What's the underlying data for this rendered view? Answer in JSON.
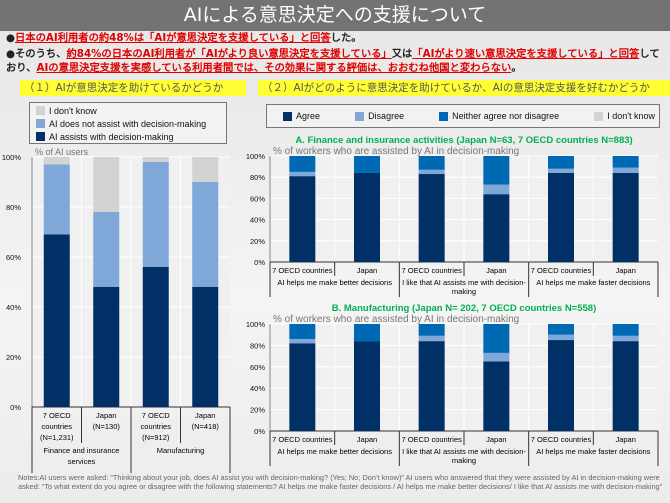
{
  "title": "AIによる意思決定への支援について",
  "bullets": [
    [
      {
        "t": "●",
        "h": false
      },
      {
        "t": "日本のAI利用者の約48%は「AIが意思決定を支援している」と回答",
        "h": true
      },
      {
        "t": "した。",
        "h": false
      }
    ],
    [
      {
        "t": "●そのうち、",
        "h": false
      },
      {
        "t": "約84%の日本のAI利用者が「AIがより良い意思決定を支援している」",
        "h": true
      },
      {
        "t": "又は",
        "h": false
      },
      {
        "t": "「AIがより速い意思決定を支援している」と回答",
        "h": true
      },
      {
        "t": "しており、",
        "h": false
      },
      {
        "t": "AIの意思決定支援を実感している利用者間では、その効果に関する評価は、おおむね他国と変わらない",
        "h": true
      },
      {
        "t": "。",
        "h": false
      }
    ]
  ],
  "section1": "（１）AIが意思決定を助けているかどうか",
  "section2": "（２）AIがどのように意思決定を助けているか、AIの意思決定支援を好むかどうか",
  "colors": {
    "assist": "#003066",
    "not_assist": "#7fa8d8",
    "dont_know": "#d3d3d3",
    "agree": "#003066",
    "disagree": "#7fa8d8",
    "neither": "#0069b4",
    "title_green": "#00b050"
  },
  "legend_left": [
    {
      "label": "I don't know",
      "color": "#d3d3d3"
    },
    {
      "label": "AI does not assist with decision-making",
      "color": "#7fa8d8"
    },
    {
      "label": "AI assists with decision-making",
      "color": "#003066"
    }
  ],
  "legend_right": [
    {
      "label": "Agree",
      "color": "#003066"
    },
    {
      "label": "Disagree",
      "color": "#7fa8d8"
    },
    {
      "label": "Neither agree nor disagree",
      "color": "#0069b4"
    },
    {
      "label": "I don't know",
      "color": "#d3d3d3"
    }
  ],
  "chart_data": [
    {
      "type": "bar",
      "stacked": true,
      "ylabel": "% of AI users",
      "ylim": [
        0,
        100
      ],
      "yticks": [
        "0%",
        "20%",
        "40%",
        "60%",
        "80%",
        "100%"
      ],
      "categories": [
        "7 OECD countries (N=1,231)",
        "Japan (N=130)",
        "7 OECD countries (N=912)",
        "Japan (N=418)"
      ],
      "groups": [
        "Finance and insurance services",
        "Manufacturing"
      ],
      "series": [
        {
          "name": "AI assists with decision-making",
          "values": [
            69,
            48,
            56,
            48
          ]
        },
        {
          "name": "AI does not assist with decision-making",
          "values": [
            28,
            30,
            42,
            42
          ]
        },
        {
          "name": "I don't know",
          "values": [
            3,
            22,
            2,
            10
          ]
        }
      ]
    },
    {
      "type": "bar",
      "stacked": true,
      "title": "A. Finance and insurance activities (Japan N=63,  7 OECD countries N=883)",
      "ylabel": "% of workers who are assisted by AI in decision-making",
      "ylim": [
        0,
        100
      ],
      "yticks": [
        "0%",
        "20%",
        "40%",
        "60%",
        "80%",
        "100%"
      ],
      "categories": [
        "7 OECD countries",
        "Japan",
        "7 OECD countries",
        "Japan",
        "7 OECD countries",
        "Japan"
      ],
      "groups": [
        "AI helps me make better decisions",
        "I like that AI assists me with decision-making",
        "AI helps me make faster decisions"
      ],
      "series": [
        {
          "name": "Agree",
          "values": [
            81,
            84,
            83,
            64,
            84,
            84
          ]
        },
        {
          "name": "Disagree",
          "values": [
            4,
            0,
            4,
            9,
            4,
            5
          ]
        },
        {
          "name": "Neither agree nor disagree",
          "values": [
            15,
            16,
            13,
            27,
            12,
            11
          ]
        },
        {
          "name": "I don't know",
          "values": [
            0,
            0,
            0,
            0,
            0,
            0
          ]
        }
      ]
    },
    {
      "type": "bar",
      "stacked": true,
      "title": "B. Manufacturing (Japan N= 202,  7 OECD countries N=558)",
      "ylabel": "% of workers who are assisted by AI in decision-making",
      "ylim": [
        0,
        100
      ],
      "yticks": [
        "0%",
        "20%",
        "40%",
        "60%",
        "80%",
        "100%"
      ],
      "categories": [
        "7 OECD countries",
        "Japan",
        "7 OECD countries",
        "Japan",
        "7 OECD countries",
        "Japan"
      ],
      "groups": [
        "AI helps me make better decisions",
        "I like that AI assists me with decision-making",
        "AI helps me make faster decisions"
      ],
      "series": [
        {
          "name": "Agree",
          "values": [
            82,
            84,
            84,
            65,
            85,
            84
          ]
        },
        {
          "name": "Disagree",
          "values": [
            4,
            0,
            5,
            8,
            5,
            5
          ]
        },
        {
          "name": "Neither agree nor disagree",
          "values": [
            14,
            16,
            11,
            27,
            10,
            11
          ]
        },
        {
          "name": "I don't know",
          "values": [
            0,
            0,
            0,
            0,
            0,
            0
          ]
        }
      ]
    }
  ],
  "notes": "Notes:AI users were asked: “Thinking about your job, does AI assist you with decision-making? (Yes; No; Don’t know)” AI users who answered that they were assisted by AI in decision-making were asked: “To what extent do you agree or disagree with the following statements? AI helps me make faster decisions / AI helps me make better decisions/ I like that AI assists me with decision-making”"
}
